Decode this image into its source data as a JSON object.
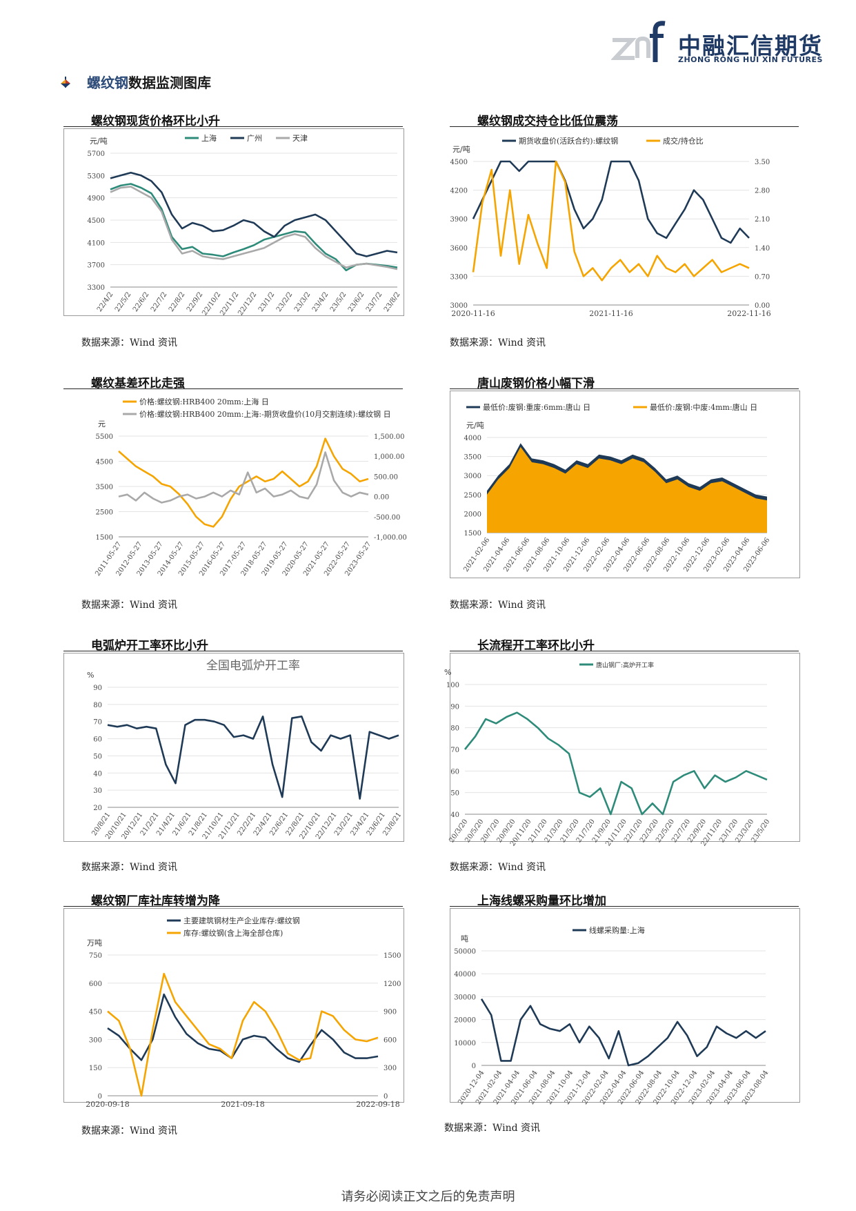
{
  "header": {
    "logo_cn": "中融汇信期货",
    "logo_en": "ZHONG RONG HUI XIN FUTURES",
    "logo_mark": "znf"
  },
  "section": {
    "title_highlight": "螺纹钢",
    "title_rest": "数据监测图库"
  },
  "source_label": "数据来源：Wind 资讯",
  "footer": "请务必阅读正文之后的免责声明",
  "panels": [
    {
      "title": "螺纹钢现货价格环比小升",
      "chart_data": {
        "type": "line",
        "yunit": "元/吨",
        "yticks": [
          "5700",
          "5300",
          "4900",
          "4500",
          "4100",
          "3700",
          "3300"
        ],
        "ylim": [
          3300,
          5700
        ],
        "xticks": [
          "22/4/2",
          "22/5/2",
          "22/6/2",
          "22/7/2",
          "22/8/2",
          "22/9/2",
          "22/10/2",
          "22/11/2",
          "22/12/2",
          "23/1/2",
          "23/2/2",
          "23/3/2",
          "23/4/2",
          "23/5/2",
          "23/6/2",
          "23/7/2",
          "23/8/2"
        ],
        "series": [
          {
            "name": "上海",
            "color": "#2e8b7a",
            "values": [
              5050,
              5120,
              5150,
              5080,
              4980,
              4700,
              4200,
              3980,
              4020,
              3900,
              3880,
              3850,
              3920,
              3980,
              4050,
              4150,
              4200,
              4250,
              4300,
              4280,
              4080,
              3900,
              3800,
              3600,
              3700,
              3720,
              3700,
              3680,
              3650
            ]
          },
          {
            "name": "广州",
            "color": "#1f3a56",
            "values": [
              5250,
              5300,
              5350,
              5300,
              5200,
              5000,
              4600,
              4350,
              4450,
              4400,
              4300,
              4320,
              4400,
              4500,
              4450,
              4300,
              4200,
              4400,
              4500,
              4550,
              4600,
              4500,
              4300,
              4100,
              3900,
              3850,
              3900,
              3950,
              3920
            ]
          },
          {
            "name": "天津",
            "color": "#a9a9a9",
            "values": [
              5000,
              5080,
              5100,
              5000,
              4900,
              4650,
              4150,
              3900,
              3950,
              3850,
              3820,
              3800,
              3850,
              3900,
              3950,
              4000,
              4100,
              4200,
              4250,
              4200,
              4000,
              3850,
              3750,
              3650,
              3700,
              3720,
              3690,
              3660,
              3620
            ]
          }
        ]
      }
    },
    {
      "title": "螺纹钢成交持仓比低位震荡",
      "chart_data": {
        "type": "line",
        "yunit": "元/吨",
        "yticks": [
          "4500",
          "4200",
          "3900",
          "3600",
          "3300",
          "3000"
        ],
        "ylim": [
          3000,
          4500
        ],
        "y2ticks": [
          "3.50",
          "2.80",
          "2.10",
          "1.40",
          "0.70",
          "0.00"
        ],
        "y2lim": [
          0,
          3.5
        ],
        "xticks": [
          "2020-11-16",
          "2021-11-16",
          "2022-11-16"
        ],
        "series": [
          {
            "name": "期货收盘价(活跃合约):螺纹钢",
            "color": "#1f3a56",
            "axis": "left",
            "values": [
              3900,
              4100,
              4300,
              4500,
              4500,
              4400,
              4500,
              4500,
              4500,
              4500,
              4300,
              4000,
              3800,
              3900,
              4100,
              4500,
              4500,
              4500,
              4300,
              3900,
              3750,
              3700,
              3850,
              4000,
              4200,
              4100,
              3900,
              3700,
              3650,
              3800,
              3700
            ]
          },
          {
            "name": "成交/持仓比",
            "color": "#f5a400",
            "axis": "right",
            "values": [
              0.8,
              2.5,
              3.3,
              1.2,
              2.8,
              1.0,
              2.2,
              1.5,
              0.9,
              3.5,
              3.0,
              1.3,
              0.7,
              0.9,
              0.6,
              0.9,
              1.1,
              0.8,
              1.0,
              0.7,
              1.2,
              0.9,
              0.8,
              1.0,
              0.7,
              0.9,
              1.1,
              0.8,
              0.9,
              1.0,
              0.9
            ]
          }
        ]
      }
    },
    {
      "title": "螺纹基差环比走强",
      "chart_data": {
        "type": "line",
        "yunit": "元",
        "yticks": [
          "5500",
          "4500",
          "3500",
          "2500",
          "1500"
        ],
        "ylim": [
          1500,
          5500
        ],
        "y2ticks": [
          "1,500.00",
          "1,000.00",
          "500.00",
          "0.00",
          "-500.00",
          "-1,000.00"
        ],
        "y2lim": [
          -1000,
          1500
        ],
        "xticks": [
          "2011-05-27",
          "2012-05-27",
          "2013-05-27",
          "2014-05-27",
          "2015-05-27",
          "2016-05-27",
          "2017-05-27",
          "2018-05-27",
          "2019-05-27",
          "2020-05-27",
          "2021-05-27",
          "2022-05-27",
          "2023-05-27"
        ],
        "series": [
          {
            "name": "价格:螺纹钢:HRB400 20mm:上海 日",
            "color": "#f5a400",
            "axis": "left",
            "values": [
              4900,
              4600,
              4300,
              4100,
              3900,
              3600,
              3500,
              3200,
              2800,
              2300,
              2000,
              1900,
              2300,
              3000,
              3500,
              3700,
              3900,
              3700,
              3800,
              4100,
              3800,
              3500,
              3700,
              4300,
              5400,
              4700,
              4200,
              4000,
              3700,
              3800
            ]
          },
          {
            "name": "价格:螺纹钢:HRB400 20mm:上海:-期货收盘价(10月交割连续):螺纹钢 日",
            "color": "#a9a9a9",
            "axis": "right",
            "values": [
              0,
              50,
              -100,
              100,
              -50,
              -150,
              -100,
              0,
              50,
              -50,
              0,
              100,
              0,
              150,
              50,
              600,
              100,
              200,
              0,
              50,
              150,
              0,
              -50,
              300,
              1100,
              400,
              100,
              0,
              100,
              50
            ]
          }
        ]
      }
    },
    {
      "title": "唐山废钢价格小幅下滑",
      "chart_data": {
        "type": "area",
        "yunit": "元/吨",
        "yticks": [
          "4000",
          "3500",
          "3000",
          "2500",
          "2000",
          "1500"
        ],
        "ylim": [
          1500,
          4000
        ],
        "xticks": [
          "2021-02-06",
          "2021-04-06",
          "2021-06-06",
          "2021-08-06",
          "2021-10-06",
          "2021-12-06",
          "2022-02-06",
          "2022-04-06",
          "2022-06-06",
          "2022-08-06",
          "2022-10-06",
          "2022-12-06",
          "2023-02-06",
          "2023-04-06",
          "2023-06-06"
        ],
        "series": [
          {
            "name": "最低价:废钢:重废:6mm:唐山 日",
            "color": "#1f3a56",
            "values": [
              2600,
              3000,
              3300,
              3850,
              3450,
              3400,
              3300,
              3150,
              3400,
              3300,
              3550,
              3500,
              3400,
              3550,
              3450,
              3200,
              2900,
              3000,
              2800,
              2700,
              2900,
              2950,
              2800,
              2650,
              2500,
              2450
            ]
          },
          {
            "name": "最低价:废钢:中废:4mm:唐山 日",
            "color": "#f5a400",
            "values": [
              2500,
              2900,
              3200,
              3750,
              3350,
              3300,
              3200,
              3050,
              3300,
              3200,
              3450,
              3400,
              3300,
              3450,
              3350,
              3100,
              2800,
              2900,
              2700,
              2600,
              2800,
              2850,
              2700,
              2550,
              2400,
              2350
            ]
          }
        ]
      }
    },
    {
      "title": "电弧炉开工率环比小升",
      "chart_data": {
        "type": "line",
        "title": "全国电弧炉开工率",
        "yunit": "%",
        "yticks": [
          "90",
          "80",
          "70",
          "60",
          "50",
          "40",
          "30",
          "20"
        ],
        "ylim": [
          20,
          90
        ],
        "xticks": [
          "20/8/21",
          "20/10/21",
          "20/12/21",
          "21/2/21",
          "21/4/21",
          "21/6/21",
          "21/8/21",
          "21/10/21",
          "21/12/21",
          "22/2/21",
          "22/4/21",
          "22/6/21",
          "22/8/21",
          "22/10/21",
          "22/12/21",
          "23/2/21",
          "23/4/21",
          "23/6/21",
          "23/8/21"
        ],
        "series": [
          {
            "name": "全国电弧炉开工率",
            "color": "#1f3a56",
            "values": [
              68,
              67,
              68,
              66,
              67,
              66,
              45,
              34,
              68,
              71,
              71,
              70,
              68,
              61,
              62,
              60,
              73,
              45,
              26,
              72,
              73,
              58,
              53,
              62,
              60,
              62,
              25,
              64,
              62,
              60,
              62
            ]
          }
        ]
      }
    },
    {
      "title": "长流程开工率环比小升",
      "chart_data": {
        "type": "line",
        "yunit": "%",
        "yticks": [
          "100",
          "90",
          "80",
          "70",
          "60",
          "50",
          "40"
        ],
        "ylim": [
          40,
          100
        ],
        "xticks": [
          "20/3/20",
          "20/5/20",
          "20/7/20",
          "20/9/20",
          "20/11/20",
          "21/1/20",
          "21/3/20",
          "21/5/20",
          "21/7/20",
          "21/9/20",
          "21/11/20",
          "22/1/20",
          "22/3/20",
          "22/5/20",
          "22/7/20",
          "22/9/20",
          "22/11/20",
          "23/1/20",
          "23/3/20",
          "23/5/20"
        ],
        "series": [
          {
            "name": "唐山钢厂:高炉开工率",
            "color": "#2e8b7a",
            "values": [
              70,
              76,
              84,
              82,
              85,
              87,
              84,
              80,
              75,
              72,
              68,
              50,
              48,
              52,
              40,
              55,
              52,
              40,
              45,
              40,
              55,
              58,
              60,
              52,
              58,
              55,
              57,
              60,
              58,
              56
            ]
          }
        ]
      }
    },
    {
      "title": "螺纹钢厂库社库转增为降",
      "chart_data": {
        "type": "line",
        "yunit": "万吨",
        "yticks": [
          "750",
          "600",
          "450",
          "300",
          "150",
          "0"
        ],
        "ylim": [
          0,
          750
        ],
        "y2ticks": [
          "1500",
          "1200",
          "900",
          "600",
          "300",
          "0"
        ],
        "y2lim": [
          0,
          1500
        ],
        "xticks": [
          "2020-09-18",
          "2021-09-18",
          "2022-09-18"
        ],
        "series": [
          {
            "name": "主要建筑钢材生产企业库存:螺纹钢",
            "color": "#1f3a56",
            "axis": "left",
            "values": [
              360,
              320,
              250,
              190,
              300,
              540,
              420,
              330,
              280,
              250,
              240,
              200,
              300,
              320,
              310,
              250,
              200,
              180,
              270,
              350,
              300,
              230,
              200,
              200,
              210
            ]
          },
          {
            "name": "库存:螺纹钢(含上海全部仓库)",
            "color": "#f5a400",
            "axis": "right",
            "values": [
              900,
              800,
              500,
              0,
              700,
              1300,
              1000,
              850,
              700,
              550,
              500,
              400,
              800,
              1000,
              900,
              700,
              450,
              380,
              400,
              900,
              850,
              700,
              600,
              580,
              620
            ]
          }
        ]
      }
    },
    {
      "title": "上海线螺采购量环比增加",
      "chart_data": {
        "type": "line",
        "yunit": "吨",
        "yticks": [
          "50000",
          "40000",
          "30000",
          "20000",
          "10000",
          "0"
        ],
        "ylim": [
          0,
          50000
        ],
        "xticks": [
          "2020-12-04",
          "2021-02-04",
          "2021-04-04",
          "2021-06-04",
          "2021-08-04",
          "2021-10-04",
          "2021-12-04",
          "2022-02-04",
          "2022-04-04",
          "2022-06-04",
          "2022-08-04",
          "2022-10-04",
          "2022-12-04",
          "2023-02-04",
          "2023-04-04",
          "2023-06-04",
          "2023-08-04"
        ],
        "series": [
          {
            "name": "线螺采购量:上海",
            "color": "#1f3a56",
            "values": [
              29000,
              22000,
              2000,
              2000,
              20000,
              26000,
              18000,
              16000,
              15000,
              18000,
              10000,
              17000,
              12000,
              3000,
              15000,
              0,
              1000,
              4000,
              8000,
              12000,
              19000,
              13000,
              4000,
              8000,
              17000,
              14000,
              12000,
              15000,
              12000,
              15000
            ]
          }
        ]
      }
    }
  ]
}
